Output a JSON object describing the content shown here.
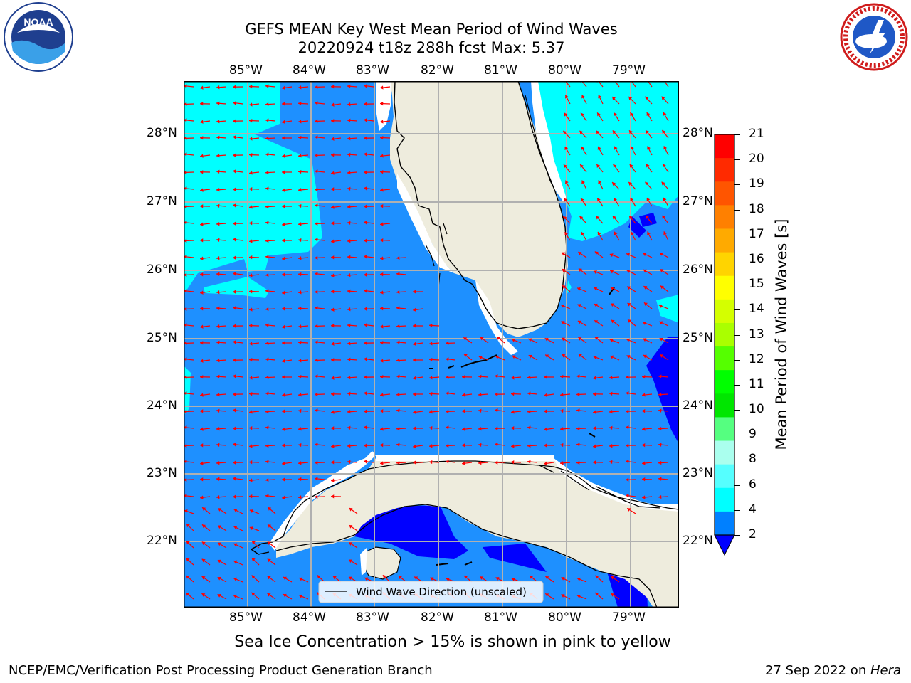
{
  "header": {
    "title_line1": "GEFS MEAN Key West Mean Period of Wind Waves",
    "title_line2": "20220924 t18z 288h fcst   Max: 5.37"
  },
  "logos": {
    "left": {
      "name": "NOAA",
      "text": "NOAA"
    },
    "right": {
      "name": "National Weather Service",
      "text": "NATIONAL WEATHER SERVICE"
    }
  },
  "map": {
    "lon_labels": [
      "85°W",
      "84°W",
      "83°W",
      "82°W",
      "81°W",
      "80°W",
      "79°W"
    ],
    "lat_labels": [
      "28°N",
      "27°N",
      "26°N",
      "25°N",
      "24°N",
      "23°N",
      "22°N"
    ],
    "lon_range": [
      -86,
      -78.3
    ],
    "lat_range": [
      21.05,
      28.75
    ],
    "legend_label": "Wind Wave Direction (unscaled)"
  },
  "colorbar": {
    "label": "Mean Period of Wind Waves [s]",
    "ticks": [
      "21",
      "20",
      "19",
      "18",
      "17",
      "16",
      "15",
      "14",
      "13",
      "12",
      "11",
      "10",
      "9",
      "8",
      "6",
      "4",
      "2"
    ],
    "colors": [
      "#ff0000",
      "#ff2a00",
      "#ff5500",
      "#ff8000",
      "#ffaa00",
      "#ffd400",
      "#ffff00",
      "#d4ff00",
      "#aaff00",
      "#55ff00",
      "#00ff00",
      "#00e600",
      "#55ff80",
      "#aaffee",
      "#55ffff",
      "#00ffff",
      "#0080ff"
    ]
  },
  "notes": {
    "sea_ice": "Sea Ice Concentration > 15% is shown in pink to yellow"
  },
  "footer": {
    "left": "NCEP/EMC/Verification Post Processing Product Generation Branch",
    "date": "27 Sep 2022 on ",
    "machine": "Hera"
  },
  "colors": {
    "ocean_mid": "#1e90ff",
    "ocean_light": "#00ffff",
    "ocean_dark": "#0000ff",
    "land": "#eeecdd",
    "arrow": "#ff0000",
    "grid": "#b0b0b0"
  }
}
